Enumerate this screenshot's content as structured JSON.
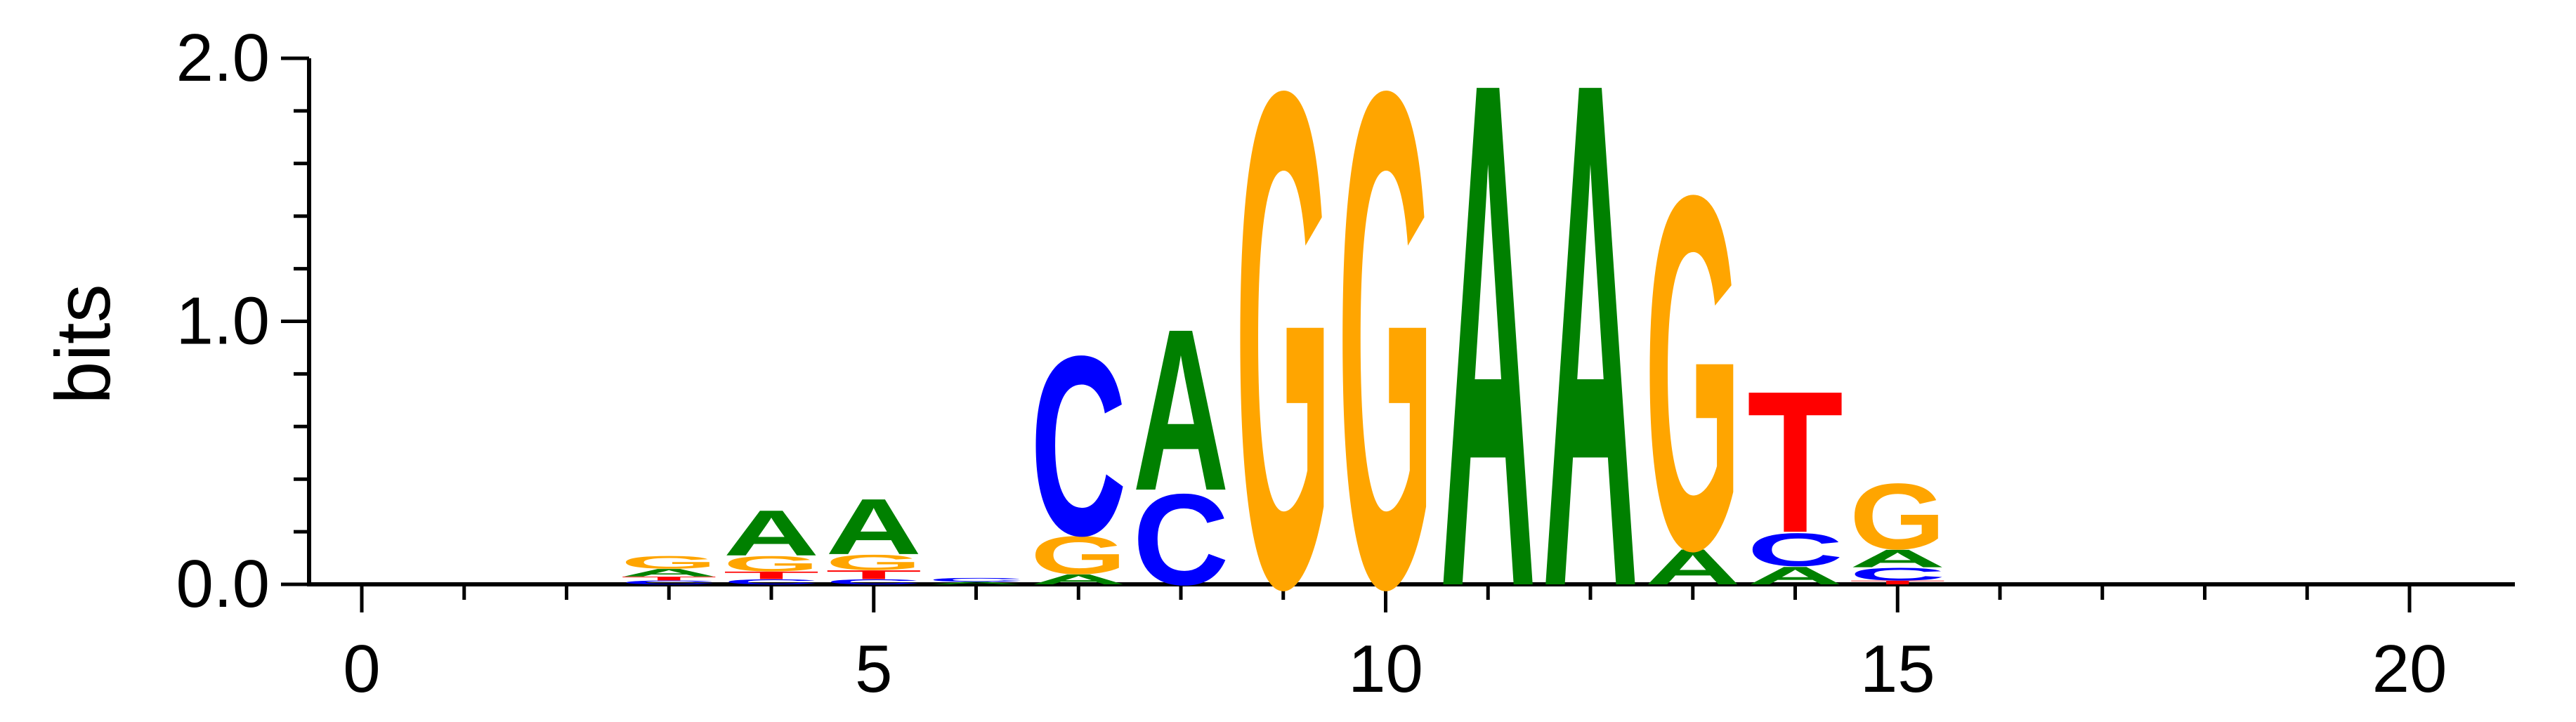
{
  "chart_data": {
    "type": "sequence-logo",
    "ylabel": "bits",
    "ylim": [
      0,
      2
    ],
    "xlim": [
      -0.5,
      20.5
    ],
    "x_ticks": [
      0,
      5,
      10,
      15,
      20
    ],
    "y_ticks": [
      0.0,
      1.0,
      2.0
    ],
    "y_tick_labels": [
      "0.0",
      "1.0",
      "2.0"
    ],
    "grid": false,
    "colors": {
      "A": "#008000",
      "C": "#0000ff",
      "G": "#ffa500",
      "T": "#ff0000"
    },
    "positions": [
      {
        "x": 3,
        "stack": [
          {
            "letter": "C",
            "bits": 0.015
          },
          {
            "letter": "T",
            "bits": 0.015
          },
          {
            "letter": "A",
            "bits": 0.03
          },
          {
            "letter": "G",
            "bits": 0.05
          }
        ]
      },
      {
        "x": 4,
        "stack": [
          {
            "letter": "C",
            "bits": 0.02
          },
          {
            "letter": "T",
            "bits": 0.03
          },
          {
            "letter": "G",
            "bits": 0.06
          },
          {
            "letter": "A",
            "bits": 0.18
          }
        ]
      },
      {
        "x": 5,
        "stack": [
          {
            "letter": "C",
            "bits": 0.02
          },
          {
            "letter": "T",
            "bits": 0.035
          },
          {
            "letter": "G",
            "bits": 0.06
          },
          {
            "letter": "A",
            "bits": 0.22
          }
        ]
      },
      {
        "x": 6,
        "stack": [
          {
            "letter": "A",
            "bits": 0.01
          },
          {
            "letter": "C",
            "bits": 0.015
          }
        ]
      },
      {
        "x": 7,
        "stack": [
          {
            "letter": "A",
            "bits": 0.04
          },
          {
            "letter": "G",
            "bits": 0.15
          },
          {
            "letter": "C",
            "bits": 0.71
          }
        ]
      },
      {
        "x": 8,
        "stack": [
          {
            "letter": "C",
            "bits": 0.36
          },
          {
            "letter": "A",
            "bits": 0.64
          }
        ]
      },
      {
        "x": 9,
        "stack": [
          {
            "letter": "G",
            "bits": 1.96
          }
        ]
      },
      {
        "x": 10,
        "stack": [
          {
            "letter": "G",
            "bits": 1.96
          }
        ]
      },
      {
        "x": 11,
        "stack": [
          {
            "letter": "A",
            "bits": 2.0
          }
        ]
      },
      {
        "x": 12,
        "stack": [
          {
            "letter": "A",
            "bits": 2.0
          }
        ]
      },
      {
        "x": 13,
        "stack": [
          {
            "letter": "A",
            "bits": 0.14
          },
          {
            "letter": "G",
            "bits": 1.4
          }
        ]
      },
      {
        "x": 14,
        "stack": [
          {
            "letter": "A",
            "bits": 0.07
          },
          {
            "letter": "C",
            "bits": 0.13
          },
          {
            "letter": "T",
            "bits": 0.56
          }
        ]
      },
      {
        "x": 15,
        "stack": [
          {
            "letter": "T",
            "bits": 0.015
          },
          {
            "letter": "C",
            "bits": 0.05
          },
          {
            "letter": "A",
            "bits": 0.07
          },
          {
            "letter": "G",
            "bits": 0.26
          }
        ]
      }
    ]
  }
}
